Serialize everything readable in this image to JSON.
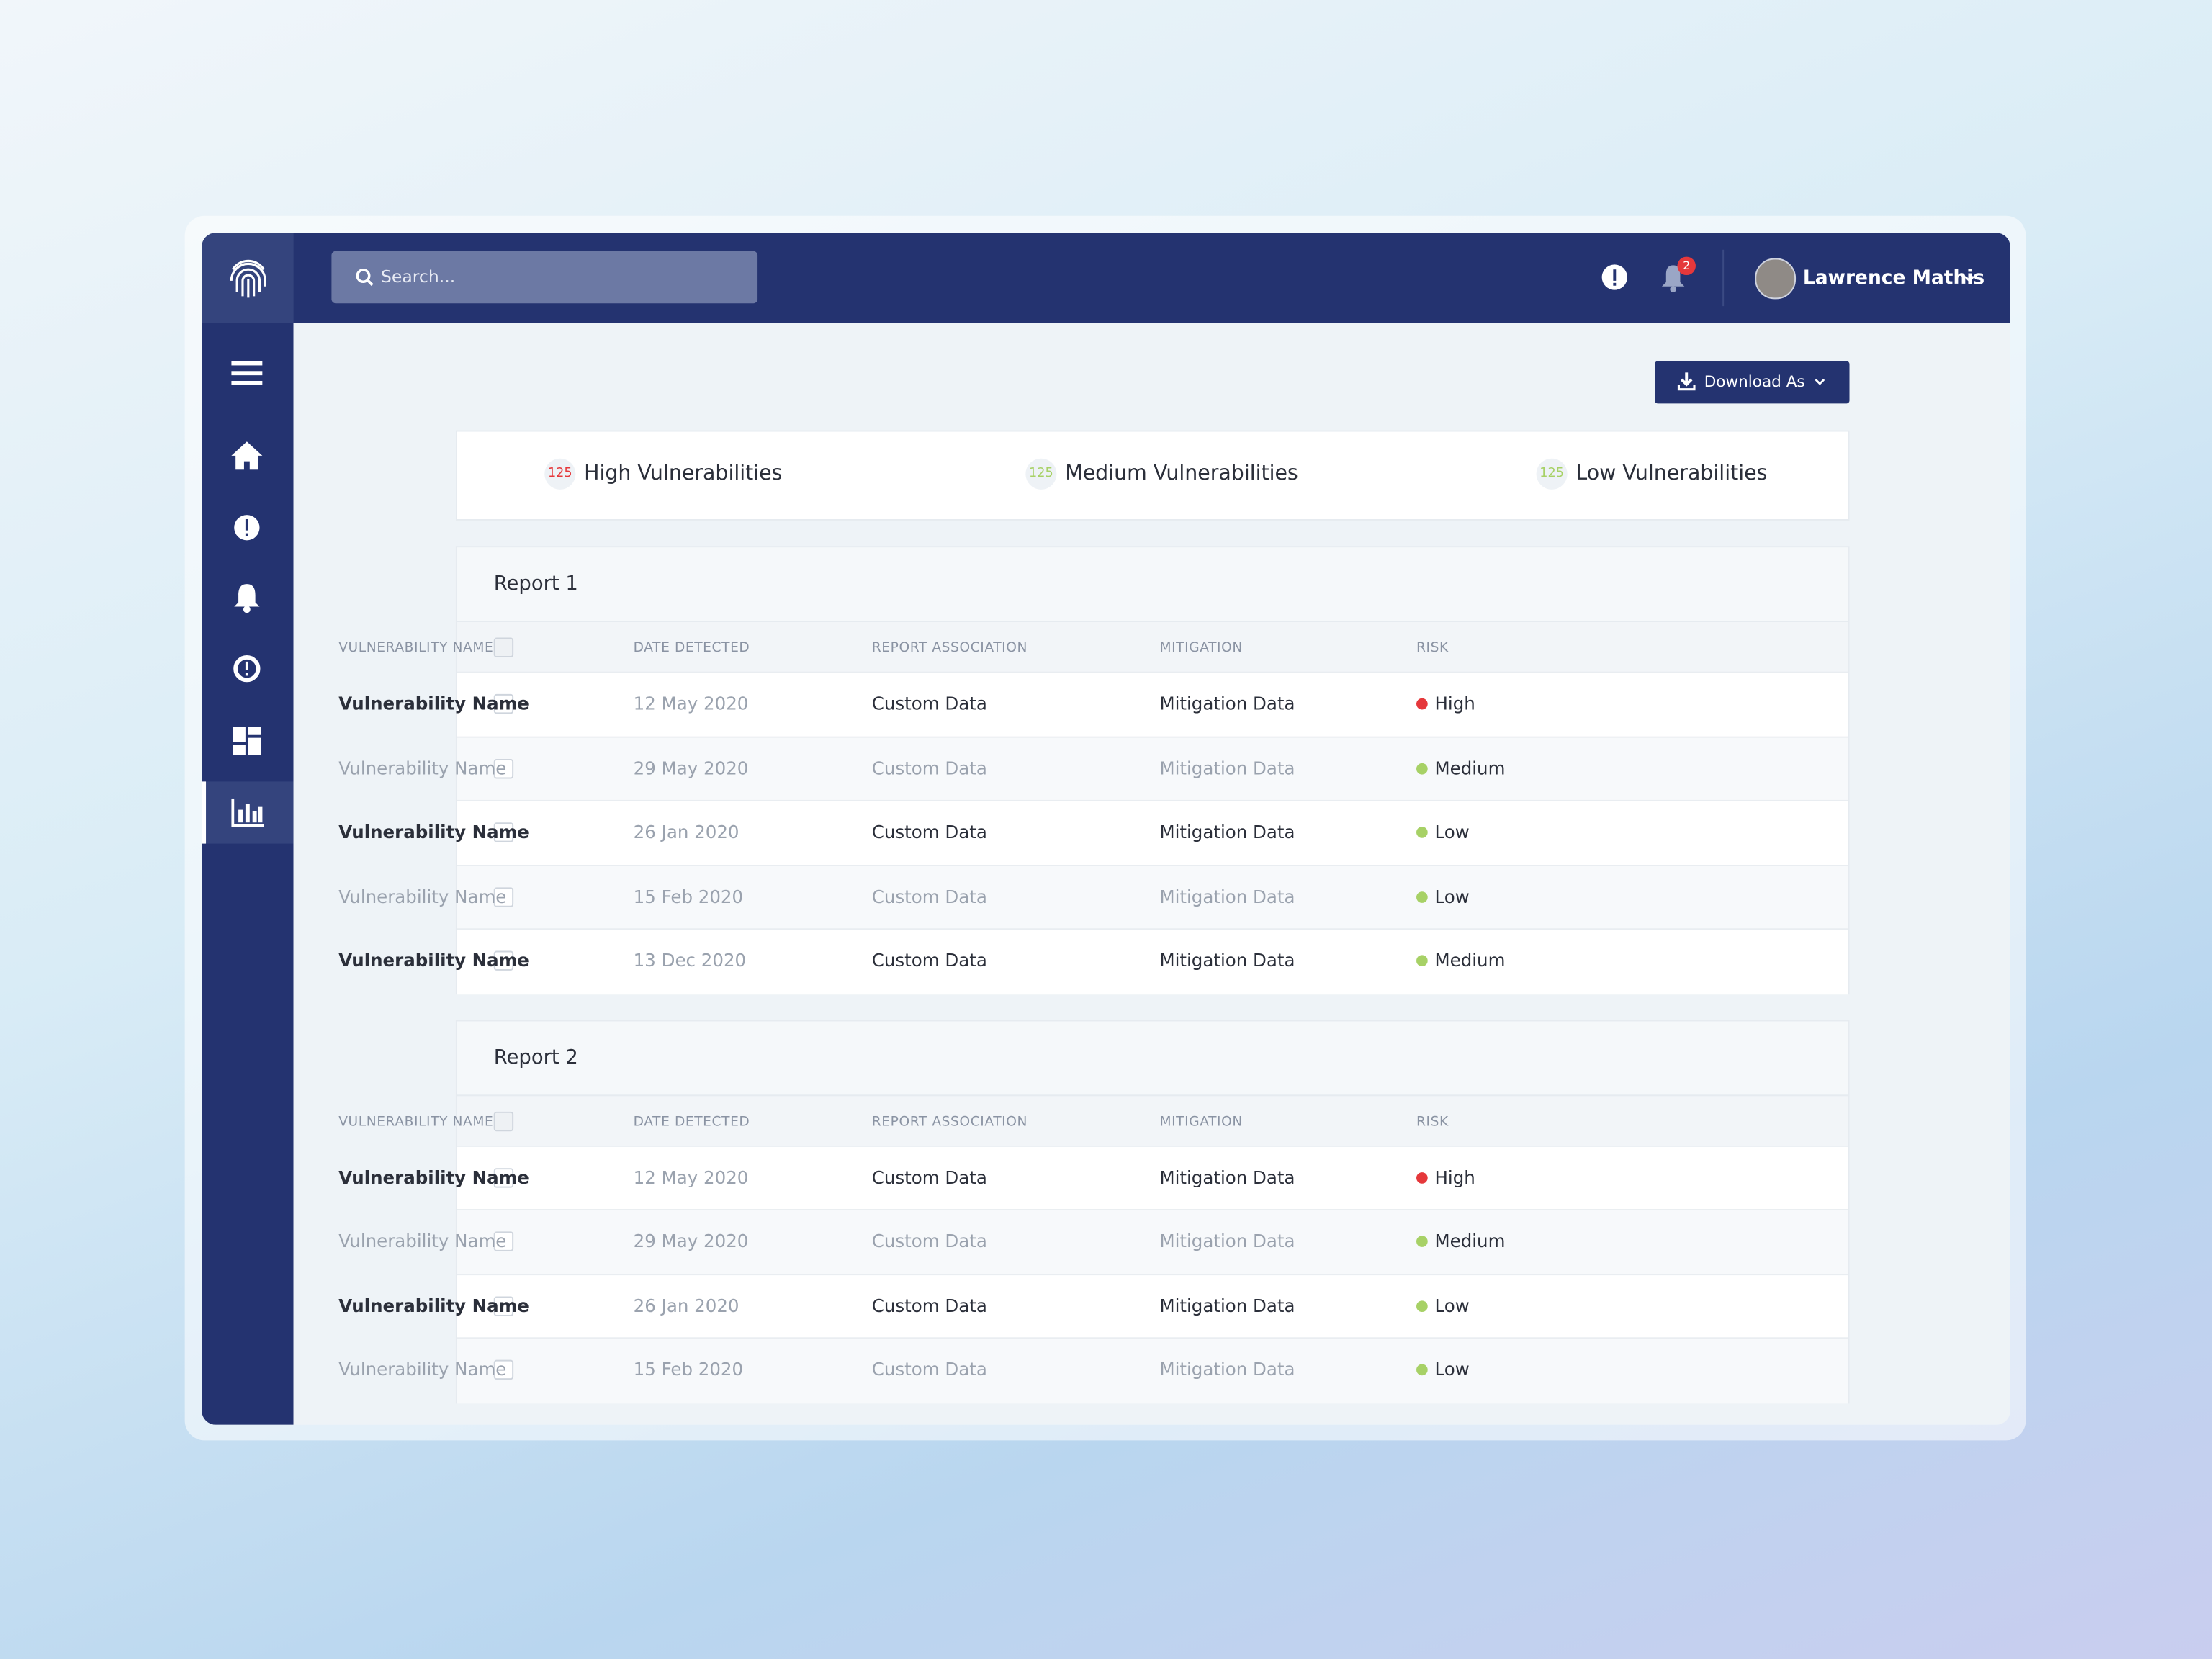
{
  "search_placeholder": "Search...",
  "notification_count": 2,
  "user_name": "Lawrence Mathis",
  "download_button": "Download As",
  "summary": [
    {
      "count": 125,
      "label": "High Vulnerabilities",
      "color": "#e5383b"
    },
    {
      "count": 125,
      "label": "Medium Vulnerabilities",
      "color": "#a7d166"
    },
    {
      "count": 125,
      "label": "Low Vulnerabilities",
      "color": "#a7d166"
    }
  ],
  "risk_colors": {
    "High": "#e5383b",
    "Medium": "#a7d166",
    "Low": "#a7d166"
  },
  "reports": [
    {
      "title": "Report 1",
      "columns": [
        "VULNERABILITY NAME",
        "DATE DETECTED",
        "REPORT ASSOCIATION",
        "MITIGATION",
        "RISK"
      ],
      "rows": [
        [
          "Vulnerability Name",
          "12 May 2020",
          "Custom Data",
          "Mitigation Data",
          "High"
        ],
        [
          "Vulnerability Name",
          "29 May 2020",
          "Custom Data",
          "Mitigation Data",
          "Medium"
        ],
        [
          "Vulnerability Name",
          "26 Jan 2020",
          "Custom Data",
          "Mitigation Data",
          "Low"
        ],
        [
          "Vulnerability Name",
          "15 Feb 2020",
          "Custom Data",
          "Mitigation Data",
          "Low"
        ],
        [
          "Vulnerability Name",
          "13 Dec 2020",
          "Custom Data",
          "Mitigation Data",
          "Medium"
        ]
      ]
    },
    {
      "title": "Report 2",
      "columns": [
        "VULNERABILITY NAME",
        "DATE DETECTED",
        "REPORT ASSOCIATION",
        "MITIGATION",
        "RISK"
      ],
      "rows": [
        [
          "Vulnerability Name",
          "12 May 2020",
          "Custom Data",
          "Mitigation Data",
          "High"
        ],
        [
          "Vulnerability Name",
          "29 May 2020",
          "Custom Data",
          "Mitigation Data",
          "Medium"
        ],
        [
          "Vulnerability Name",
          "26 Jan 2020",
          "Custom Data",
          "Mitigation Data",
          "Low"
        ],
        [
          "Vulnerability Name",
          "15 Feb 2020",
          "Custom Data",
          "Mitigation Data",
          "Low"
        ]
      ]
    }
  ]
}
